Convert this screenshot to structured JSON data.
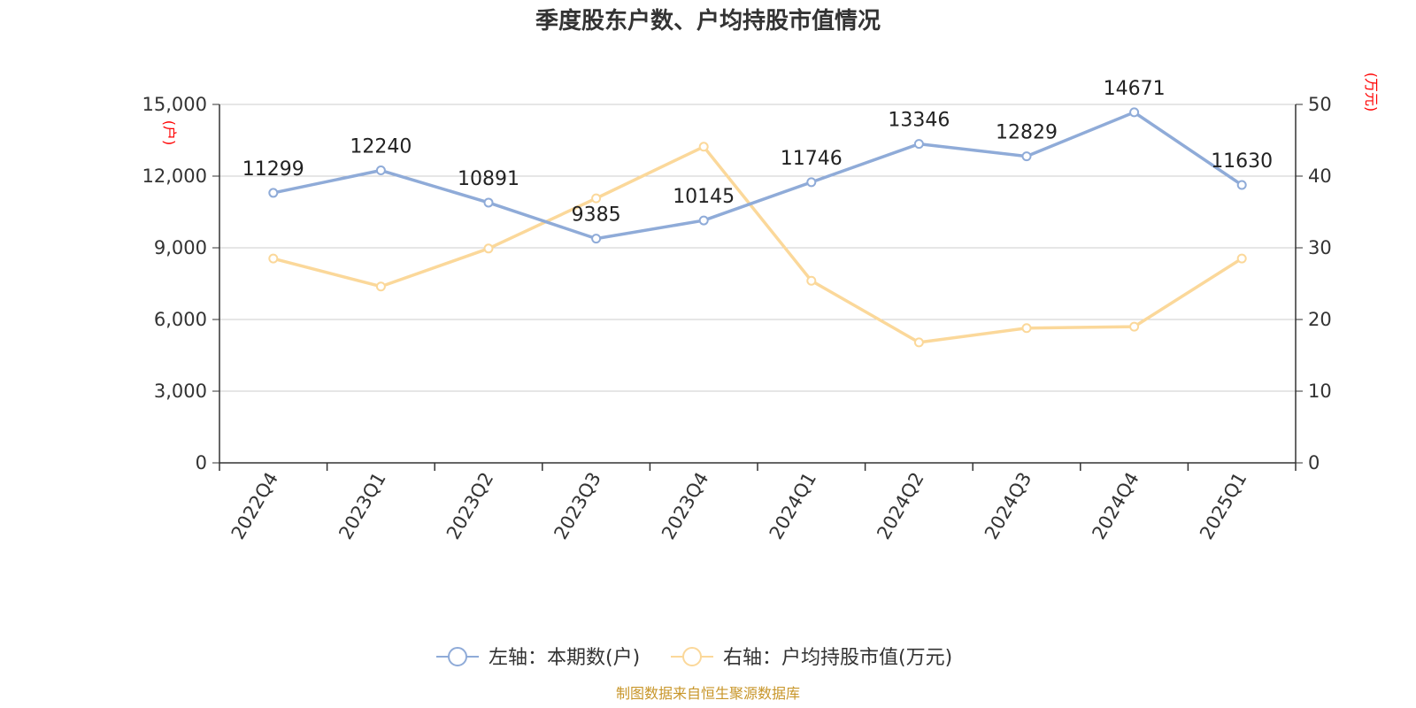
{
  "chart_data": {
    "type": "line",
    "title": "季度股东户数、户均持股市值情况",
    "categories": [
      "2022Q4",
      "2023Q1",
      "2023Q2",
      "2023Q3",
      "2023Q4",
      "2024Q1",
      "2024Q2",
      "2024Q3",
      "2024Q4",
      "2025Q1"
    ],
    "left_axis": {
      "unit_label": "(户)",
      "ylim": [
        0,
        15000
      ],
      "ticks": [
        0,
        3000,
        6000,
        9000,
        12000,
        15000
      ],
      "tick_labels": [
        "0",
        "3,000",
        "6,000",
        "9,000",
        "12,000",
        "15,000"
      ]
    },
    "right_axis": {
      "unit_label": "(万元)",
      "ylim": [
        0,
        50
      ],
      "ticks": [
        0,
        10,
        20,
        30,
        40,
        50
      ],
      "tick_labels": [
        "0",
        "10",
        "20",
        "30",
        "40",
        "50"
      ]
    },
    "series": [
      {
        "name": "左轴：本期数(户)",
        "axis": "left",
        "color": "#8fabd8",
        "values": [
          11299,
          12240,
          10891,
          9385,
          10145,
          11746,
          13346,
          12829,
          14671,
          11630
        ],
        "data_labels": [
          "11299",
          "12240",
          "10891",
          "9385",
          "10145",
          "11746",
          "13346",
          "12829",
          "14671",
          "11630"
        ]
      },
      {
        "name": "右轴：户均持股市值(万元)",
        "axis": "right",
        "color": "#fbd89a",
        "values": [
          28.5,
          24.6,
          29.9,
          36.9,
          44.1,
          25.4,
          16.8,
          18.8,
          19.0,
          28.5
        ]
      }
    ],
    "grid": true,
    "legend_position": "bottom-center",
    "source": "制图数据来自恒生聚源数据库"
  }
}
